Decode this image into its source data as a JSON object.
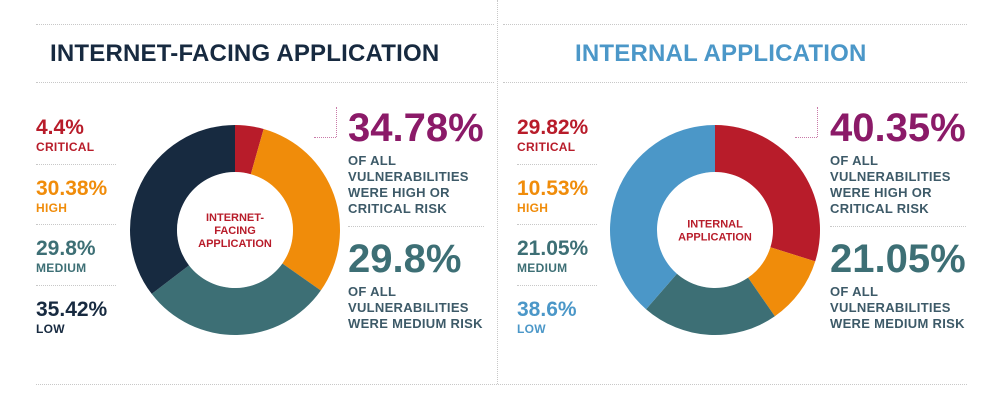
{
  "colors": {
    "critical": "#b81c2a",
    "high": "#f08c0a",
    "medium": "#3d6f75",
    "low_internet": "#172a40",
    "low_internal": "#4b97c8",
    "title_dark": "#172a40",
    "title_blue": "#4b97c8",
    "callout_purple": "#8b1a68",
    "callout_teal": "#3d6f75",
    "center_label": "#b81c2a"
  },
  "panels": [
    {
      "title": "INTERNET-FACING APPLICATION",
      "center_label": "INTERNET-\nFACING\nAPPLICATION",
      "legend": [
        {
          "pct": "4.4%",
          "name": "CRITICAL"
        },
        {
          "pct": "30.38%",
          "name": "HIGH"
        },
        {
          "pct": "29.8%",
          "name": "MEDIUM"
        },
        {
          "pct": "35.42%",
          "name": "LOW"
        }
      ],
      "callouts": [
        {
          "value": "34.78%",
          "text": "OF ALL\nVULNERABILITIES\nWERE HIGH OR\nCRITICAL RISK"
        },
        {
          "value": "29.8%",
          "text": "OF ALL\nVULNERABILITIES\nWERE MEDIUM RISK"
        }
      ]
    },
    {
      "title": "INTERNAL APPLICATION",
      "center_label": "INTERNAL\nAPPLICATION",
      "legend": [
        {
          "pct": "29.82%",
          "name": "CRITICAL"
        },
        {
          "pct": "10.53%",
          "name": "HIGH"
        },
        {
          "pct": "21.05%",
          "name": "MEDIUM"
        },
        {
          "pct": "38.6%",
          "name": "LOW"
        }
      ],
      "callouts": [
        {
          "value": "40.35%",
          "text": "OF ALL\nVULNERABILITIES\nWERE HIGH OR\nCRITICAL RISK"
        },
        {
          "value": "21.05%",
          "text": "OF ALL\nVULNERABILITIES\nWERE MEDIUM RISK"
        }
      ]
    }
  ],
  "chart_data": [
    {
      "type": "pie",
      "title": "INTERNET-FACING APPLICATION",
      "categories": [
        "CRITICAL",
        "HIGH",
        "MEDIUM",
        "LOW"
      ],
      "values": [
        4.4,
        30.38,
        29.8,
        35.42
      ]
    },
    {
      "type": "pie",
      "title": "INTERNAL APPLICATION",
      "categories": [
        "CRITICAL",
        "HIGH",
        "MEDIUM",
        "LOW"
      ],
      "values": [
        29.82,
        10.53,
        21.05,
        38.6
      ]
    }
  ]
}
